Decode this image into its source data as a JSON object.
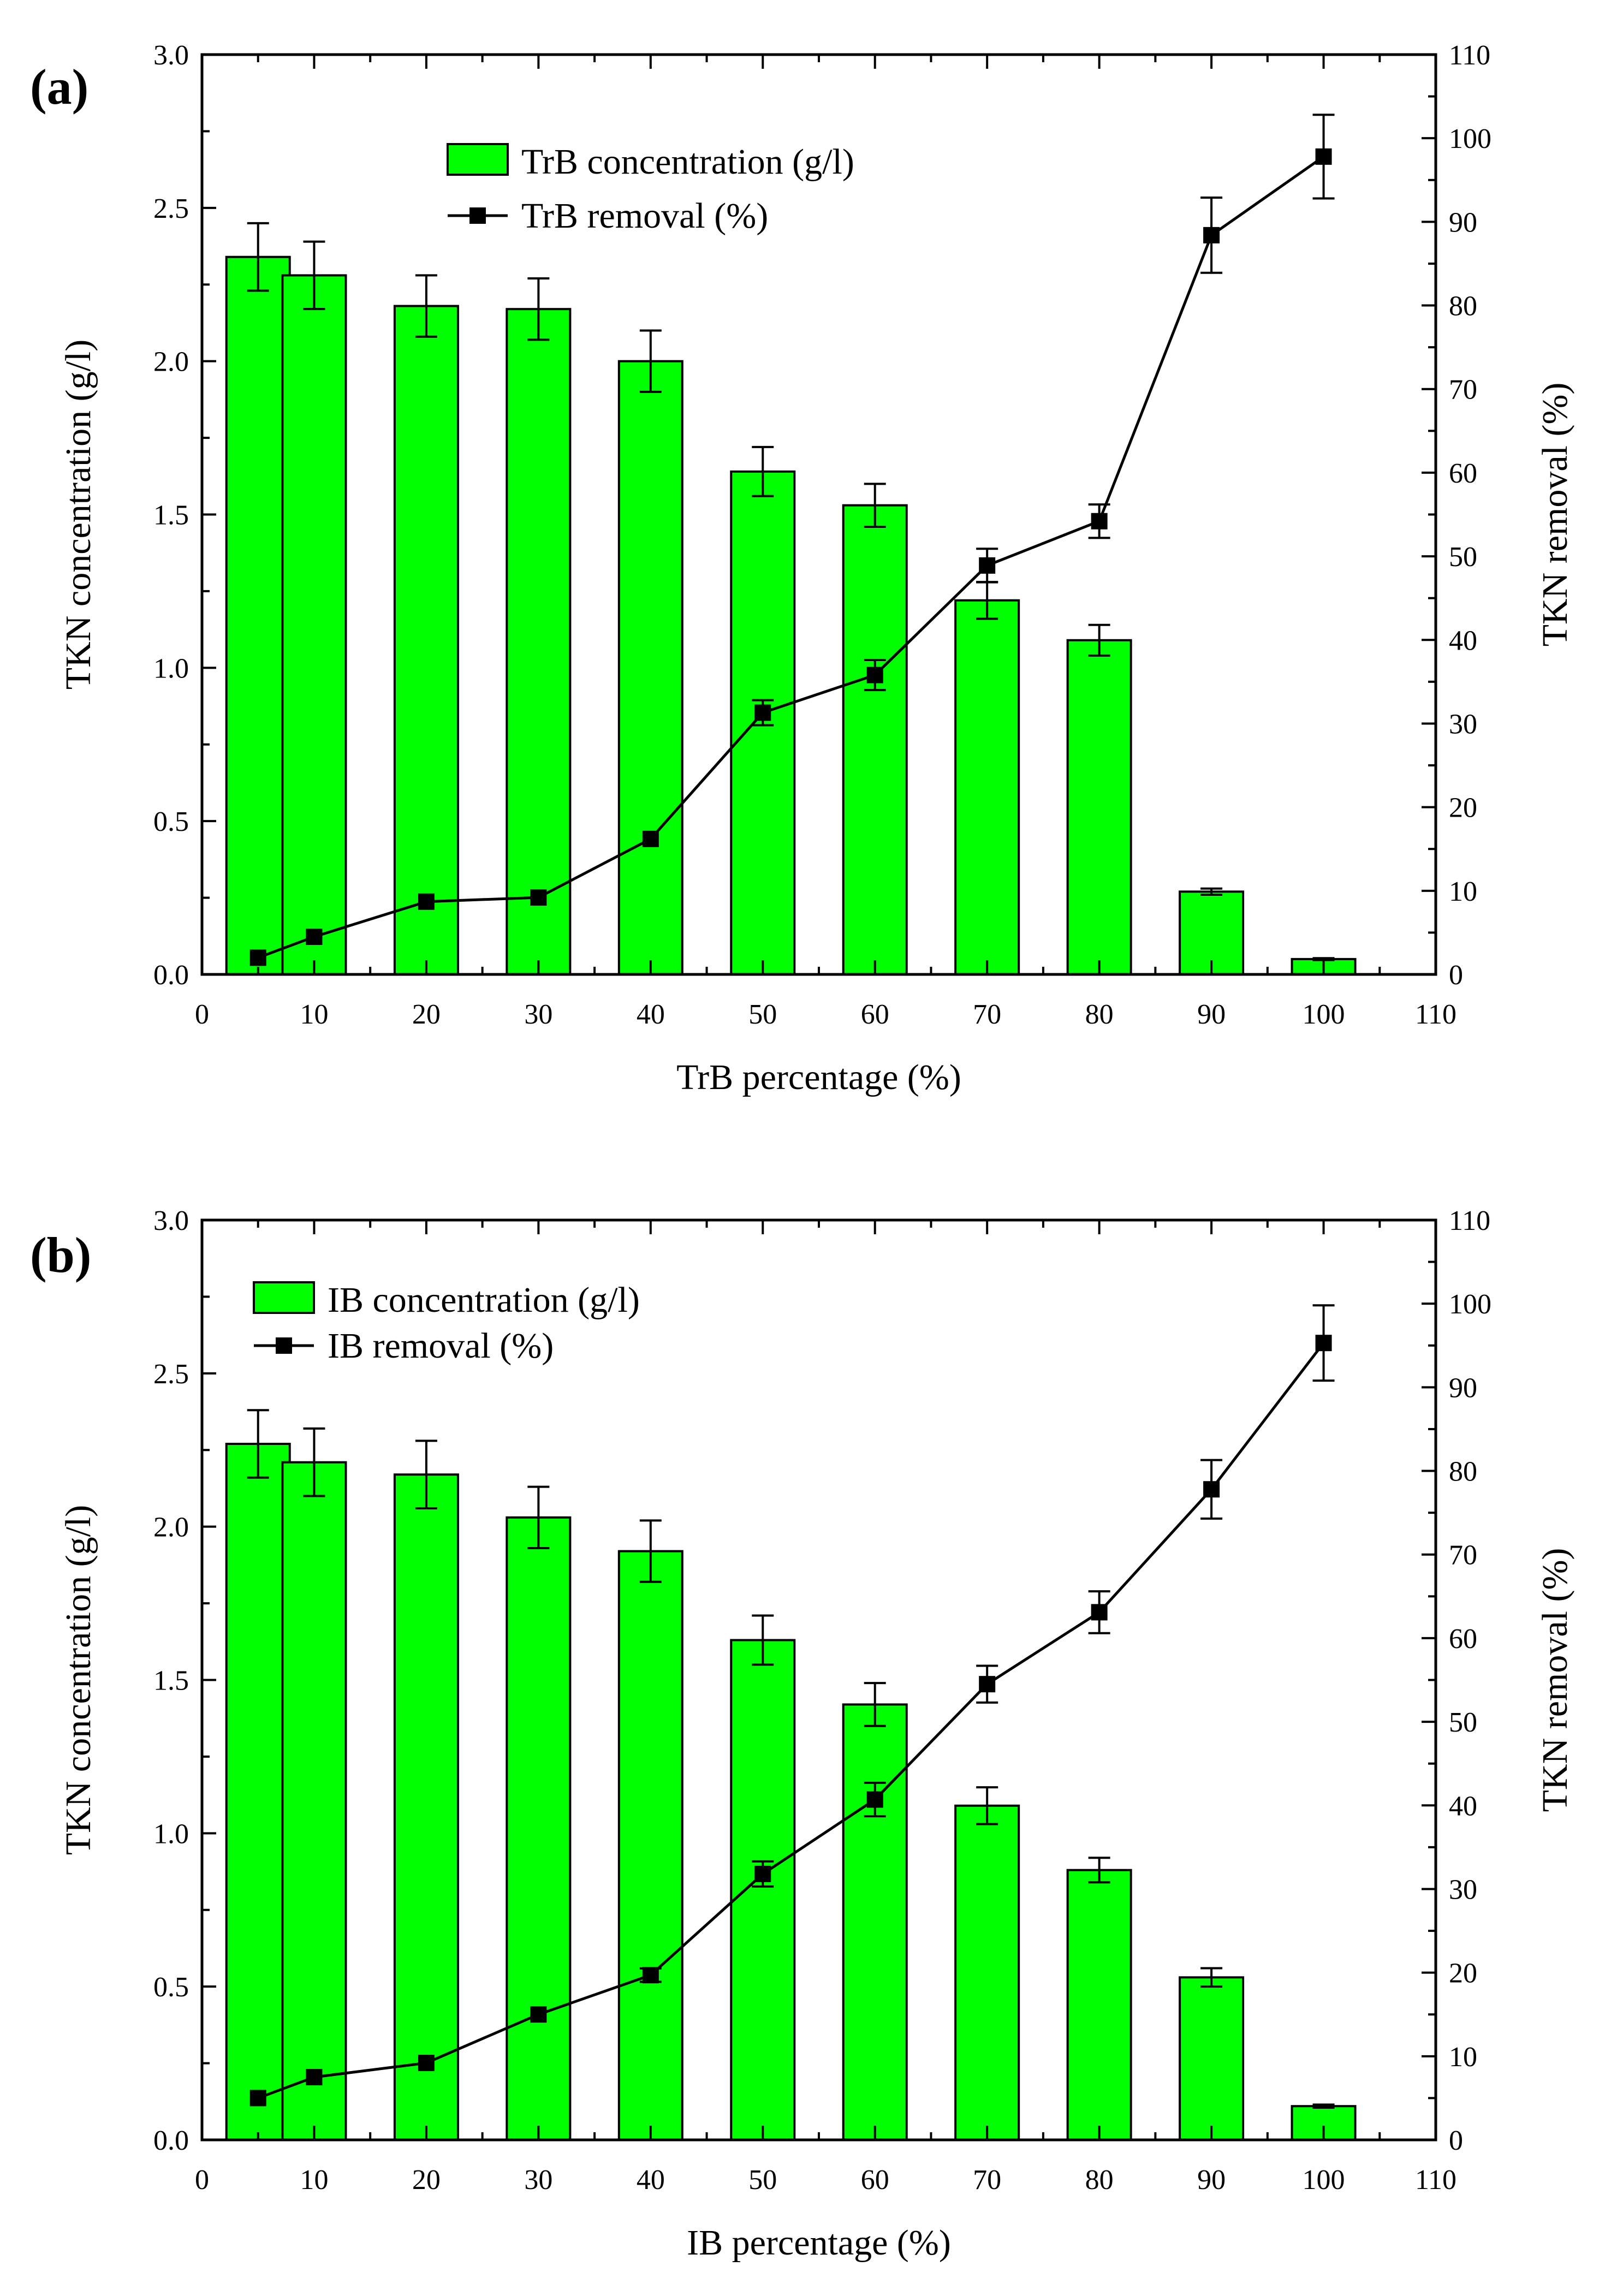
{
  "colors": {
    "bar_fill": "#00ff00",
    "bar_stroke": "#000000",
    "line": "#000000",
    "marker": "#000000",
    "background": "#ffffff"
  },
  "chart_data": [
    {
      "type": "bar",
      "panel_label": "(a)",
      "x": [
        5,
        10,
        20,
        30,
        40,
        50,
        60,
        70,
        80,
        90,
        100
      ],
      "xlabel": "TrB percentage (%)",
      "ylabel": "TKN concentration (g/l)",
      "y2label": "TKN removal (%)",
      "xlim": [
        0,
        110
      ],
      "ylim": [
        0,
        3.0
      ],
      "y2lim": [
        0,
        110
      ],
      "xticks": [
        0,
        10,
        20,
        30,
        40,
        50,
        60,
        70,
        80,
        90,
        100,
        110
      ],
      "yticks": [
        "0.0",
        "0.5",
        "1.0",
        "1.5",
        "2.0",
        "2.5",
        "3.0"
      ],
      "y2ticks": [
        0,
        10,
        20,
        30,
        40,
        50,
        60,
        70,
        80,
        90,
        100,
        110
      ],
      "legend_position": "upper-middle",
      "series": [
        {
          "name": "TrB concentration (g/l)",
          "kind": "bar",
          "axis": "left",
          "values": [
            2.34,
            2.28,
            2.18,
            2.17,
            2.0,
            1.64,
            1.53,
            1.22,
            1.09,
            0.27,
            0.05
          ],
          "errors": [
            0.11,
            0.11,
            0.1,
            0.1,
            0.1,
            0.08,
            0.07,
            0.06,
            0.05,
            0.01,
            0.003
          ]
        },
        {
          "name": "TrB removal (%)",
          "kind": "line",
          "axis": "right",
          "values": [
            2,
            4.5,
            8.7,
            9.2,
            16.2,
            31.3,
            35.8,
            48.9,
            54.2,
            88.4,
            97.8
          ],
          "errors": [
            0.2,
            0.3,
            0.4,
            0.4,
            0.5,
            1.5,
            1.8,
            2.0,
            2.0,
            4.5,
            5.0
          ]
        }
      ]
    },
    {
      "type": "bar",
      "panel_label": "(b)",
      "x": [
        5,
        10,
        20,
        30,
        40,
        50,
        60,
        70,
        80,
        90,
        100
      ],
      "xlabel": "IB percentage (%)",
      "ylabel": "TKN concentration (g/l)",
      "y2label": "TKN removal (%)",
      "xlim": [
        0,
        110
      ],
      "ylim": [
        0,
        3.0
      ],
      "y2lim": [
        0,
        110
      ],
      "xticks": [
        0,
        10,
        20,
        30,
        40,
        50,
        60,
        70,
        80,
        90,
        100,
        110
      ],
      "yticks": [
        "0.0",
        "0.5",
        "1.0",
        "1.5",
        "2.0",
        "2.5",
        "3.0"
      ],
      "y2ticks": [
        0,
        10,
        20,
        30,
        40,
        50,
        60,
        70,
        80,
        90,
        100,
        110
      ],
      "legend_position": "upper-left",
      "series": [
        {
          "name": "IB concentration (g/l)",
          "kind": "bar",
          "axis": "left",
          "values": [
            2.27,
            2.21,
            2.17,
            2.03,
            1.92,
            1.63,
            1.42,
            1.09,
            0.88,
            0.53,
            0.11
          ],
          "errors": [
            0.11,
            0.11,
            0.11,
            0.1,
            0.1,
            0.08,
            0.07,
            0.06,
            0.04,
            0.03,
            0.005
          ]
        },
        {
          "name": "IB removal (%)",
          "kind": "line",
          "axis": "right",
          "values": [
            5,
            7.5,
            9.2,
            15,
            19.7,
            31.8,
            40.7,
            54.5,
            63.1,
            77.8,
            95.3
          ],
          "errors": [
            0.3,
            0.4,
            0.5,
            0.6,
            0.8,
            1.5,
            2.0,
            2.2,
            2.5,
            3.5,
            4.5
          ]
        }
      ]
    }
  ]
}
